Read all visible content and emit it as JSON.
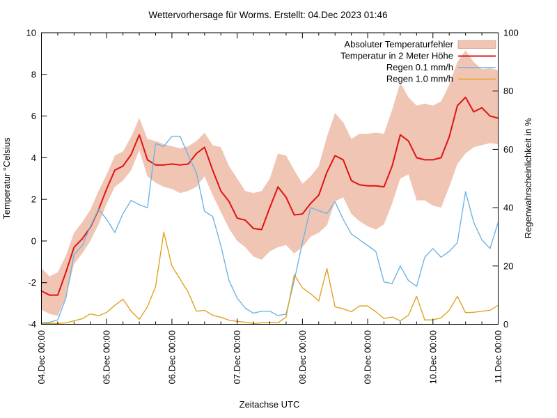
{
  "chart_data": {
    "type": "line",
    "title": "Wettervorhersage für Worms. Erstellt: 04.Dec 2023 01:46",
    "x_axis": {
      "label": "Zeitachse UTC",
      "range_hours": [
        0,
        168
      ],
      "major_tick_every_hours": 24,
      "minor_tick_every_hours": 6,
      "tick_labels": [
        "04.Dec 00:00",
        "05.Dec 00:00",
        "06.Dec 00:00",
        "07.Dec 00:00",
        "08.Dec 00:00",
        "09.Dec 00:00",
        "10.Dec 00:00",
        "11.Dec 00:00"
      ]
    },
    "y_left": {
      "label": "Temperatur °Celsius",
      "range": [
        -4,
        10
      ],
      "ticks": [
        -4,
        -2,
        0,
        2,
        4,
        6,
        8,
        10
      ]
    },
    "y_right": {
      "label": "Regenwahrscheinlichkeit in %",
      "range": [
        0,
        100
      ],
      "ticks": [
        0,
        20,
        40,
        60,
        80,
        100
      ]
    },
    "grid": "off",
    "legend_position": "top-right-inside",
    "legend": [
      {
        "label": "Absoluter Temperaturfehler",
        "swatch": "band",
        "color": "#f0c5b3"
      },
      {
        "label": "Temperatur in 2 Meter Höhe",
        "swatch": "line",
        "color": "#e01212"
      },
      {
        "label": "Regen 0.1 mm/h",
        "swatch": "line",
        "color": "#6fb3e3"
      },
      {
        "label": "Regen 1.0 mm/h",
        "swatch": "line",
        "color": "#dfa322"
      }
    ],
    "sample_step_hours": 3,
    "hours": [
      0,
      3,
      6,
      9,
      12,
      15,
      18,
      21,
      24,
      27,
      30,
      33,
      36,
      39,
      42,
      45,
      48,
      51,
      54,
      57,
      60,
      63,
      66,
      69,
      72,
      75,
      78,
      81,
      84,
      87,
      90,
      93,
      96,
      99,
      102,
      105,
      108,
      111,
      114,
      117,
      120,
      123,
      126,
      129,
      132,
      135,
      138,
      141,
      144,
      147,
      150,
      153,
      156,
      159,
      162,
      165,
      168
    ],
    "series": [
      {
        "name": "Absoluter Temperaturfehler",
        "type": "band",
        "axis": "left",
        "color": "#f0c5b3",
        "upper": [
          -1.3,
          -1.7,
          -1.5,
          -0.7,
          0.4,
          0.9,
          1.5,
          2.4,
          3.2,
          4.1,
          4.3,
          5.0,
          5.9,
          4.9,
          4.8,
          4.65,
          4.55,
          4.45,
          4.55,
          4.8,
          5.2,
          4.6,
          4.5,
          3.6,
          3.0,
          2.4,
          2.3,
          2.4,
          3.0,
          4.2,
          4.1,
          3.4,
          2.75,
          3.1,
          3.6,
          5.0,
          6.15,
          5.7,
          4.9,
          5.15,
          5.15,
          5.2,
          5.15,
          6.3,
          7.6,
          6.9,
          6.5,
          6.6,
          6.5,
          6.7,
          7.5,
          8.6,
          9.15,
          8.6,
          8.25,
          8.3,
          8.2
        ],
        "lower": [
          -3.3,
          -3.5,
          -3.6,
          -2.7,
          -1.1,
          -0.6,
          0.0,
          0.8,
          1.8,
          2.6,
          2.9,
          3.4,
          4.35,
          3.1,
          2.8,
          2.6,
          2.5,
          2.3,
          2.4,
          2.6,
          3.1,
          2.2,
          1.4,
          0.6,
          0.0,
          -0.3,
          -0.75,
          -0.9,
          -0.5,
          -0.3,
          -0.2,
          -0.6,
          -0.3,
          0.2,
          0.4,
          0.75,
          1.9,
          2.1,
          1.3,
          0.95,
          0.7,
          0.55,
          0.8,
          1.8,
          3.0,
          3.2,
          1.95,
          1.95,
          1.7,
          1.6,
          2.6,
          3.7,
          4.2,
          4.5,
          4.6,
          4.7,
          4.65
        ]
      },
      {
        "name": "Temperatur in 2 Meter Höhe",
        "type": "line",
        "axis": "left",
        "color": "#e01212",
        "values": [
          -2.4,
          -2.6,
          -2.6,
          -1.5,
          -0.3,
          0.1,
          0.65,
          1.5,
          2.5,
          3.4,
          3.6,
          4.15,
          5.1,
          3.9,
          3.65,
          3.65,
          3.7,
          3.65,
          3.7,
          4.2,
          4.5,
          3.4,
          2.4,
          1.9,
          1.1,
          1.0,
          0.6,
          0.55,
          1.6,
          2.6,
          2.1,
          1.25,
          1.3,
          1.8,
          2.2,
          3.3,
          4.1,
          3.9,
          2.9,
          2.7,
          2.65,
          2.65,
          2.6,
          3.6,
          5.1,
          4.8,
          4.0,
          3.9,
          3.9,
          4.0,
          5.0,
          6.5,
          6.9,
          6.2,
          6.4,
          6.0,
          5.9
        ]
      },
      {
        "name": "Regen 0.1 mm/h",
        "type": "line",
        "axis": "right",
        "color": "#6fb3e3",
        "values": [
          0.5,
          0.7,
          1.5,
          9,
          24,
          27,
          33.5,
          39.5,
          36,
          31.5,
          38,
          42.5,
          41,
          40,
          62,
          61,
          64.5,
          64.5,
          58,
          52,
          38.8,
          37,
          27,
          15,
          9,
          5.5,
          3.8,
          4.5,
          4.5,
          3,
          3.5,
          15,
          28,
          40,
          39,
          38,
          42,
          36,
          31,
          29,
          27,
          25,
          14.5,
          14,
          20,
          15,
          13,
          23,
          26,
          23,
          25,
          28,
          45.5,
          35,
          29,
          26,
          35
        ]
      },
      {
        "name": "Regen 1.0 mm/h",
        "type": "line",
        "axis": "right",
        "color": "#dfa322",
        "values": [
          0.3,
          0.3,
          0.3,
          0.5,
          1.2,
          1.9,
          3.6,
          2.9,
          4.1,
          6.5,
          8.6,
          4.5,
          1.7,
          6,
          13,
          31.6,
          20,
          15.5,
          11,
          4.5,
          4.8,
          3.1,
          2.4,
          1.4,
          1.0,
          0.7,
          0.3,
          0.5,
          0.7,
          0.5,
          2.5,
          17,
          12.5,
          10.5,
          8,
          19.1,
          6,
          5.3,
          4.3,
          6.3,
          6.3,
          4.3,
          2,
          2.5,
          1.2,
          3.1,
          9.6,
          1.5,
          1.5,
          2.2,
          4.8,
          9.6,
          4,
          4.1,
          4.5,
          4.8,
          6.5
        ]
      }
    ]
  }
}
